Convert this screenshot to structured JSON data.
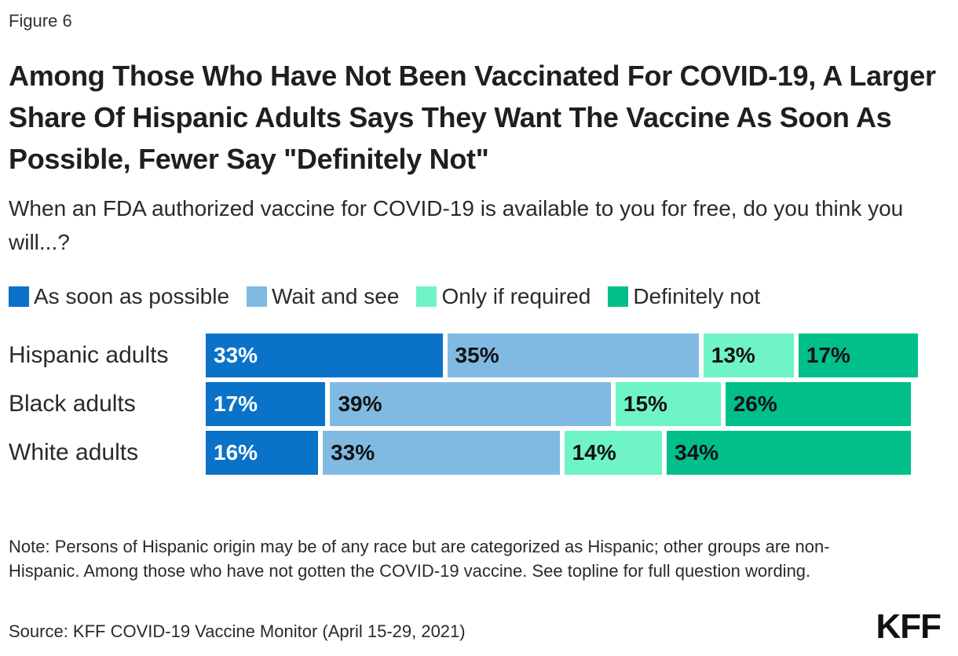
{
  "figure_label": "Figure 6",
  "logo_text": "KFF",
  "note": "Note: Persons of Hispanic origin may be of any race but are categorized as Hispanic; other groups are non-Hispanic. Among those who have not gotten the COVID-19 vaccine. See topline for full question wording.",
  "source": "Source: KFF COVID-19 Vaccine Monitor (April 15-29, 2021)",
  "chart_data": {
    "type": "bar",
    "orientation": "horizontal",
    "stacked": true,
    "title": "Among Those Who Have Not Been Vaccinated For COVID-19, A Larger Share Of Hispanic Adults Says They Want The Vaccine As Soon As Possible, Fewer Say \"Definitely Not\"",
    "subtitle": "When an FDA authorized vaccine for COVID-19 is available to you for free, do you think you will...?",
    "categories": [
      "Hispanic adults",
      "Black adults",
      "White adults"
    ],
    "series": [
      {
        "name": "As soon as possible",
        "color": "#0a72c9",
        "text_color": "#ffffff",
        "values": [
          33,
          17,
          16
        ]
      },
      {
        "name": "Wait and see",
        "color": "#80bae2",
        "text_color": "#111111",
        "values": [
          35,
          39,
          33
        ]
      },
      {
        "name": "Only if required",
        "color": "#6ff4c7",
        "text_color": "#111111",
        "values": [
          13,
          15,
          14
        ]
      },
      {
        "name": "Definitely not",
        "color": "#00bf8a",
        "text_color": "#111111",
        "values": [
          17,
          26,
          34
        ]
      }
    ],
    "value_suffix": "%",
    "legend_position": "top-left",
    "grid": false
  }
}
